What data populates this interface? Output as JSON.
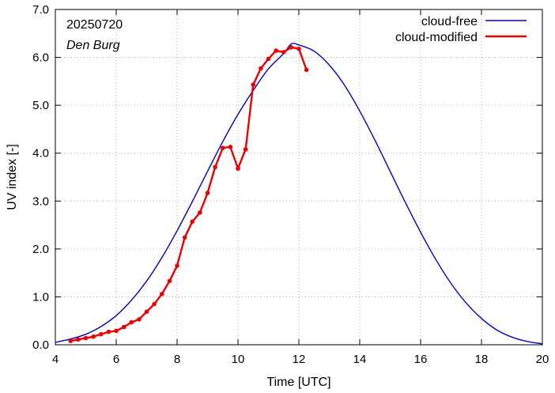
{
  "chart_data": {
    "type": "line",
    "xlabel": "Time  [UTC]",
    "ylabel": "UV index  [-]",
    "xlim": [
      4,
      20
    ],
    "ylim": [
      0,
      7
    ],
    "xticks": [
      4,
      6,
      8,
      10,
      12,
      14,
      16,
      18,
      20
    ],
    "yticks": [
      0,
      1,
      2,
      3,
      4,
      5,
      6,
      7
    ],
    "ytick_labels": [
      "0.0",
      "1.0",
      "2.0",
      "3.0",
      "4.0",
      "5.0",
      "6.0",
      "7.0"
    ],
    "annotations": {
      "date": "20250720",
      "location": "Den Burg"
    },
    "grid": true,
    "legend_placement": "top-right",
    "series": [
      {
        "name": "cloud-free",
        "color": "#0000cc",
        "kind": "curve",
        "x": [
          4.0,
          4.5,
          5.0,
          5.5,
          6.0,
          6.5,
          7.0,
          7.5,
          8.0,
          8.5,
          9.0,
          9.5,
          10.0,
          10.5,
          11.0,
          11.5,
          11.75,
          12.0,
          12.5,
          13.0,
          13.5,
          14.0,
          14.5,
          15.0,
          15.5,
          16.0,
          16.5,
          17.0,
          17.5,
          18.0,
          18.5,
          19.0,
          19.5,
          20.0
        ],
        "y": [
          0.05,
          0.12,
          0.22,
          0.38,
          0.61,
          0.93,
          1.33,
          1.82,
          2.38,
          2.99,
          3.62,
          4.24,
          4.81,
          5.31,
          5.76,
          6.08,
          6.28,
          6.26,
          6.13,
          5.84,
          5.42,
          4.88,
          4.27,
          3.62,
          2.97,
          2.35,
          1.78,
          1.28,
          0.87,
          0.55,
          0.31,
          0.16,
          0.07,
          0.02
        ]
      },
      {
        "name": "cloud-modified",
        "color": "#ee0000",
        "kind": "line-points",
        "x": [
          4.5,
          4.75,
          5.0,
          5.25,
          5.5,
          5.75,
          6.0,
          6.25,
          6.5,
          6.75,
          7.0,
          7.25,
          7.5,
          7.75,
          8.0,
          8.25,
          8.5,
          8.75,
          9.0,
          9.25,
          9.5,
          9.75,
          10.0,
          10.25,
          10.5,
          10.75,
          11.0,
          11.25,
          11.5,
          11.75,
          12.0,
          12.25
        ],
        "y": [
          0.08,
          0.11,
          0.14,
          0.17,
          0.22,
          0.27,
          0.29,
          0.37,
          0.47,
          0.53,
          0.69,
          0.85,
          1.06,
          1.33,
          1.65,
          2.24,
          2.57,
          2.76,
          3.17,
          3.71,
          4.11,
          4.13,
          3.68,
          4.08,
          5.43,
          5.77,
          5.97,
          6.14,
          6.11,
          6.21,
          6.18,
          5.74
        ]
      }
    ]
  }
}
